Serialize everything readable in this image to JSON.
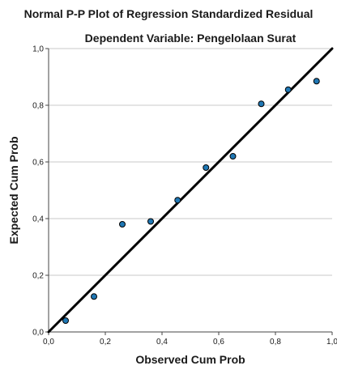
{
  "chart_data": {
    "type": "scatter",
    "title": "Normal P-P Plot of Regression Standardized Residual",
    "subtitle": "Dependent Variable: Pengelolaan Surat",
    "xlabel": "Observed Cum Prob",
    "ylabel": "Expected Cum Prob",
    "xlim": [
      0,
      1
    ],
    "ylim": [
      0,
      1
    ],
    "x_ticks": [
      "0,0",
      "0,2",
      "0,4",
      "0,6",
      "0,8",
      "1,0"
    ],
    "y_ticks": [
      "0,0",
      "0,2",
      "0,4",
      "0,6",
      "0,8",
      "1,0"
    ],
    "grid": true,
    "reference_line": {
      "from": [
        0,
        0
      ],
      "to": [
        1,
        1
      ],
      "color": "#000000"
    },
    "points": [
      {
        "x": 0.06,
        "y": 0.04
      },
      {
        "x": 0.16,
        "y": 0.125
      },
      {
        "x": 0.26,
        "y": 0.38
      },
      {
        "x": 0.36,
        "y": 0.39
      },
      {
        "x": 0.455,
        "y": 0.465
      },
      {
        "x": 0.555,
        "y": 0.58
      },
      {
        "x": 0.65,
        "y": 0.62
      },
      {
        "x": 0.75,
        "y": 0.805
      },
      {
        "x": 0.845,
        "y": 0.855
      },
      {
        "x": 0.945,
        "y": 0.885
      }
    ],
    "point_color": "#1f77b4",
    "point_edge_color": "#000000"
  }
}
